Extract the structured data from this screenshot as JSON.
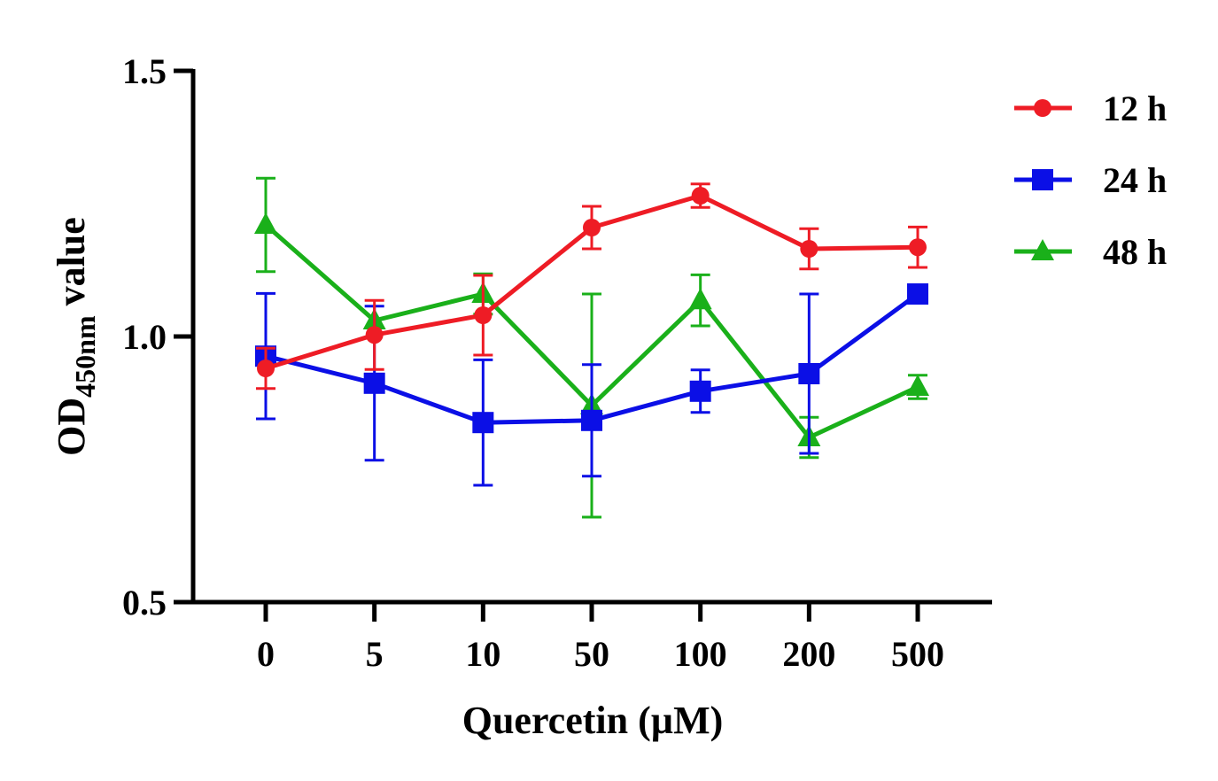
{
  "chart_data": {
    "type": "line",
    "xlabel": "Quercetin (µM)",
    "ylabel": {
      "main": "OD",
      "subscript": "450nm",
      "suffix": " value"
    },
    "categories": [
      "0",
      "5",
      "10",
      "50",
      "100",
      "200",
      "500"
    ],
    "y_ticks": [
      "0.5",
      "1.0",
      "1.5"
    ],
    "ylim": [
      0.5,
      1.5
    ],
    "grid": false,
    "legend_position": "top-right",
    "series": [
      {
        "name": "12 h",
        "color": "#ee1c25",
        "marker": "circle",
        "values": [
          0.94,
          1.003,
          1.04,
          1.205,
          1.265,
          1.165,
          1.168
        ],
        "errors": [
          0.038,
          0.065,
          0.075,
          0.04,
          0.022,
          0.038,
          0.038
        ]
      },
      {
        "name": "24 h",
        "color": "#0b0fe6",
        "marker": "square",
        "values": [
          0.963,
          0.912,
          0.838,
          0.842,
          0.897,
          0.93,
          1.08
        ],
        "errors": [
          0.118,
          0.145,
          0.118,
          0.105,
          0.04,
          0.15,
          0.0
        ]
      },
      {
        "name": "48 h",
        "color": "#1ab01a",
        "marker": "triangle",
        "values": [
          1.21,
          1.03,
          1.08,
          0.87,
          1.068,
          0.81,
          0.905
        ],
        "errors": [
          0.088,
          0.0,
          0.038,
          0.21,
          0.048,
          0.038,
          0.022
        ]
      }
    ]
  }
}
